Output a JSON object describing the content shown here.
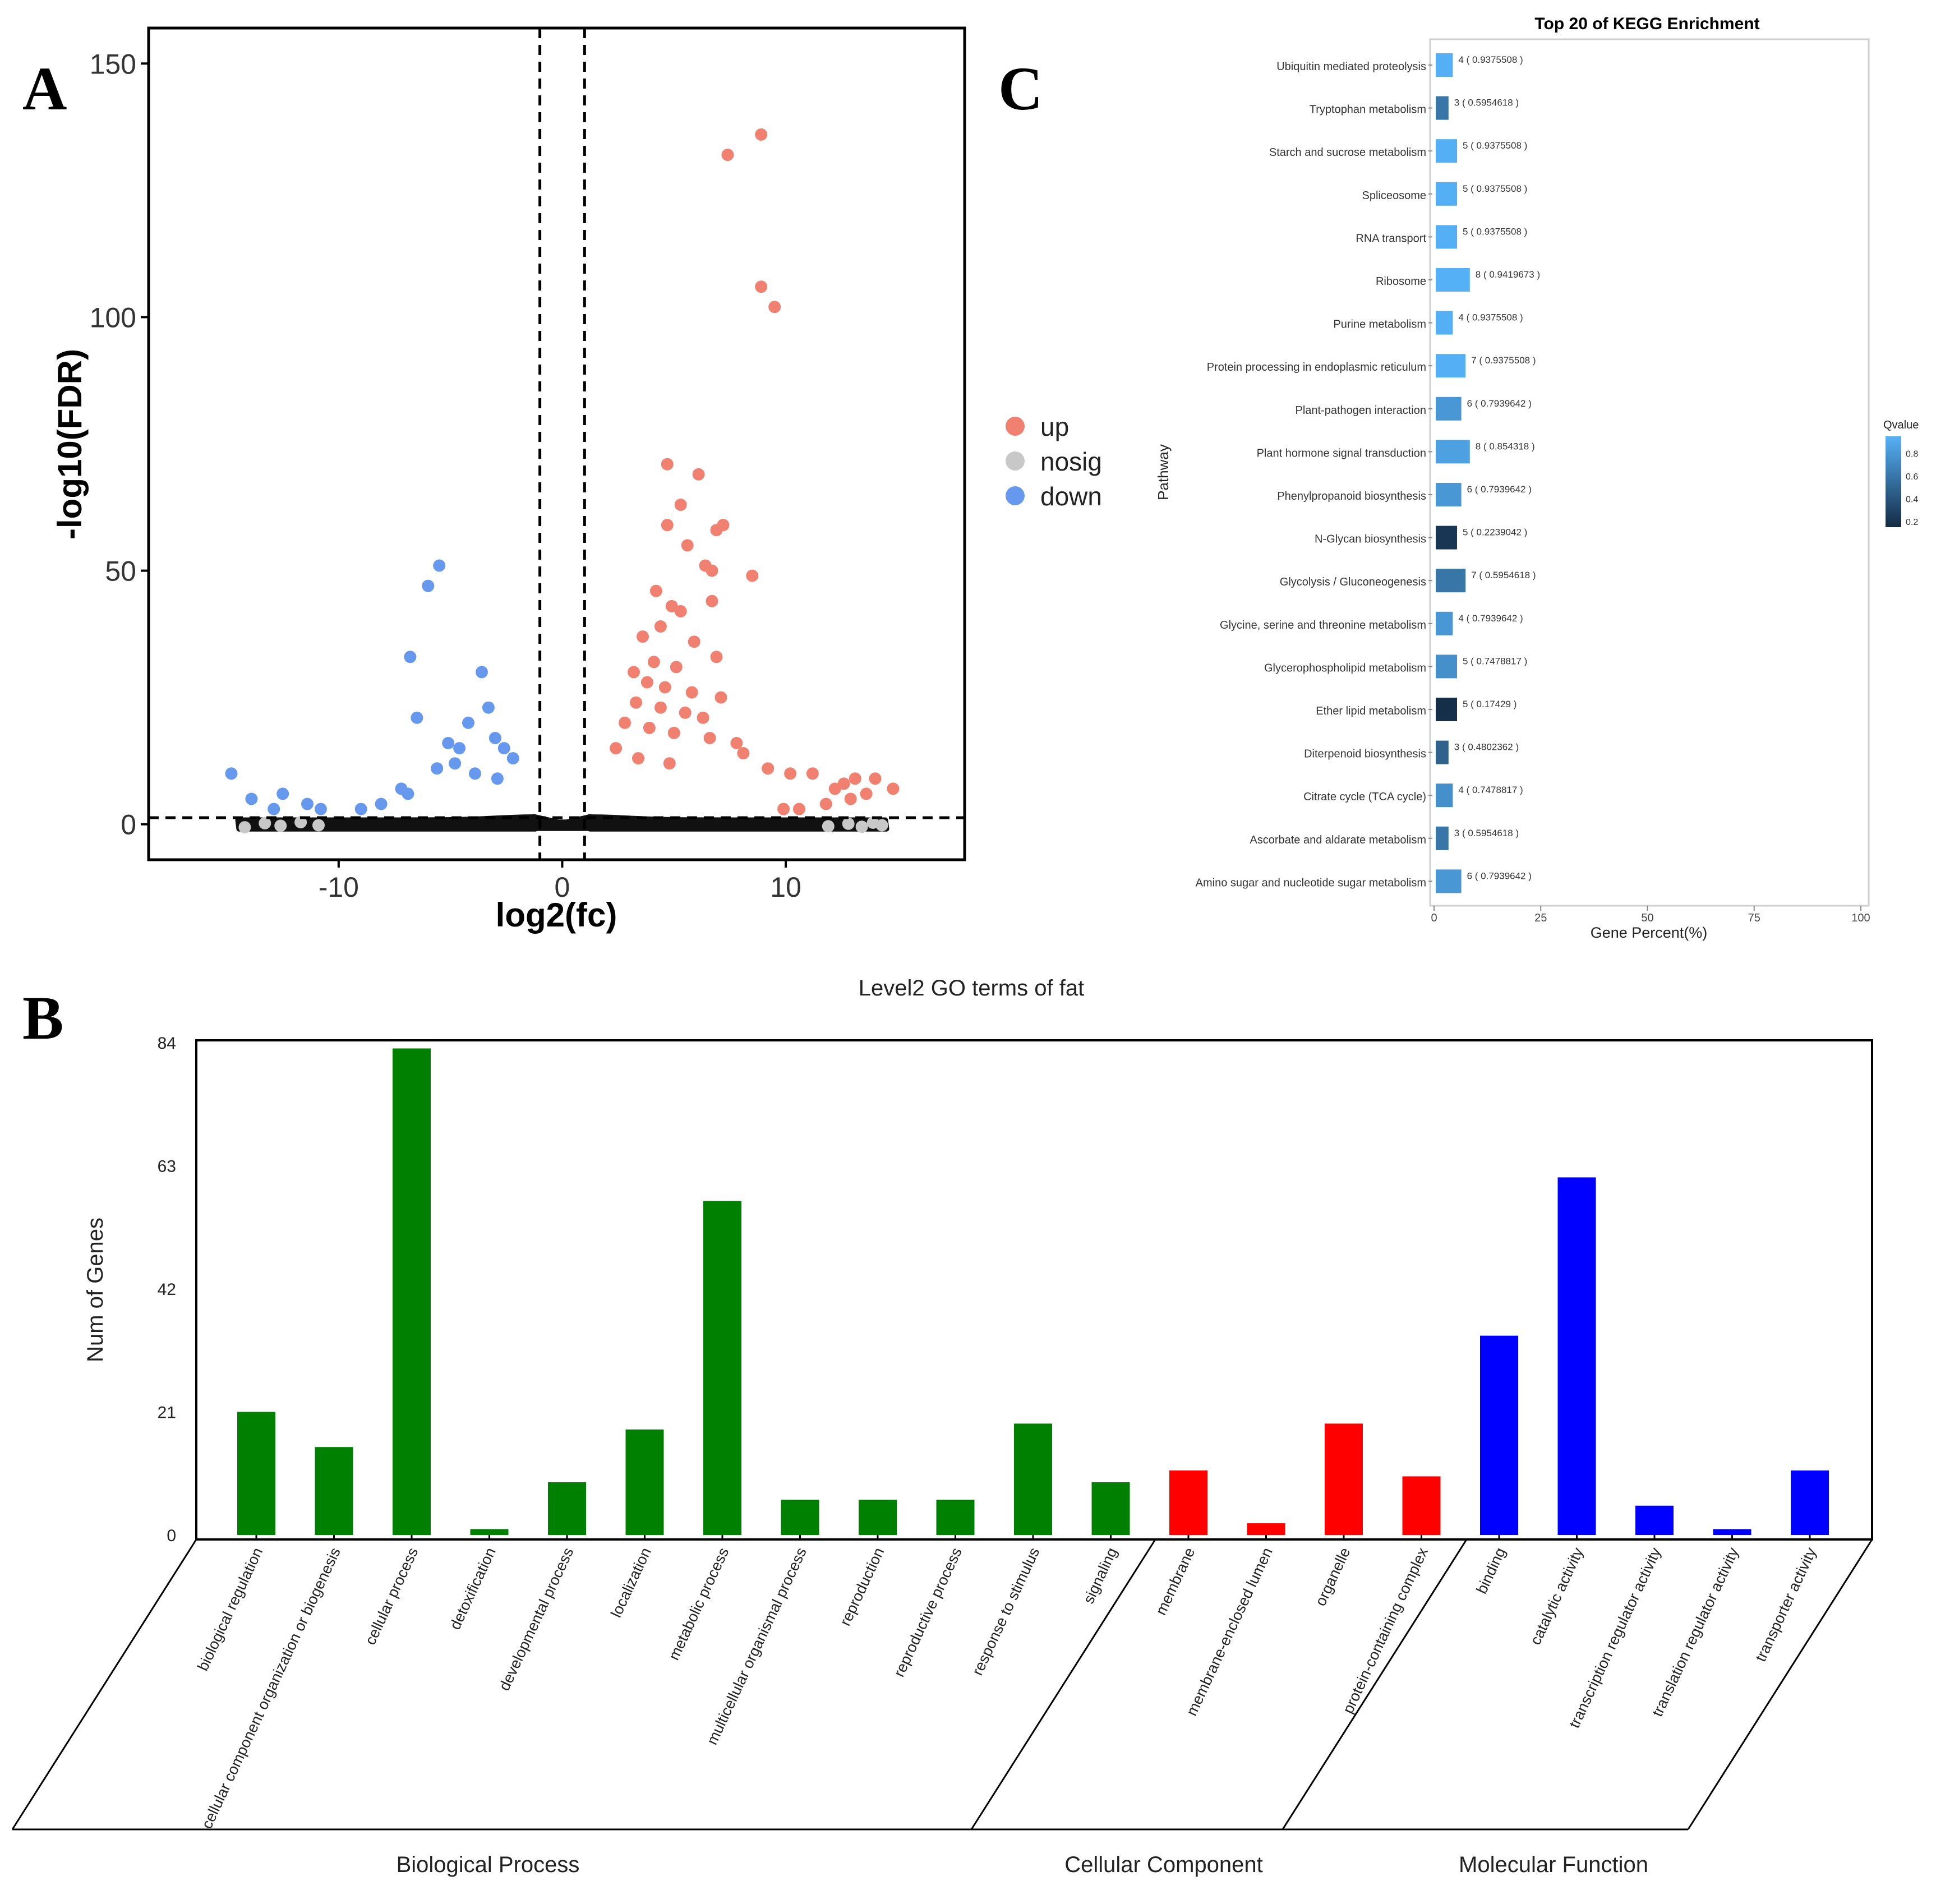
{
  "panel_labels": {
    "a": "A",
    "b": "B",
    "c": "C"
  },
  "chart_data": [
    {
      "id": "volcano",
      "type": "scatter",
      "title": "",
      "xlabel": "log2(fc)",
      "ylabel": "-log10(FDR)",
      "xlim": [
        -18.5,
        18
      ],
      "ylim": [
        -7,
        157
      ],
      "xticks": [
        -10,
        0,
        10
      ],
      "yticks": [
        0,
        50,
        100,
        150
      ],
      "vlines": [
        -1,
        1
      ],
      "hline": 1.3,
      "legend": {
        "position": "right",
        "items": [
          "up",
          "nosig",
          "down"
        ]
      },
      "colors": {
        "up": "#f08070",
        "nosig": "#c8c8c8",
        "down": "#6699ee",
        "dense": "#111111"
      },
      "series": [
        {
          "name": "up",
          "points": [
            [
              8.9,
              136
            ],
            [
              7.4,
              132
            ],
            [
              8.9,
              106
            ],
            [
              9.5,
              102
            ],
            [
              4.7,
              71
            ],
            [
              6.1,
              69
            ],
            [
              5.3,
              63
            ],
            [
              4.7,
              59
            ],
            [
              7.2,
              59
            ],
            [
              6.9,
              58
            ],
            [
              5.6,
              55
            ],
            [
              6.4,
              51
            ],
            [
              6.7,
              50
            ],
            [
              8.5,
              49
            ],
            [
              4.2,
              46
            ],
            [
              6.7,
              44
            ],
            [
              4.9,
              43
            ],
            [
              5.3,
              42
            ],
            [
              4.4,
              39
            ],
            [
              3.6,
              37
            ],
            [
              5.9,
              36
            ],
            [
              6.9,
              33
            ],
            [
              4.1,
              32
            ],
            [
              3.2,
              30
            ],
            [
              5.1,
              31
            ],
            [
              3.8,
              28
            ],
            [
              4.6,
              27
            ],
            [
              5.8,
              26
            ],
            [
              7.1,
              25
            ],
            [
              3.3,
              24
            ],
            [
              4.4,
              23
            ],
            [
              5.5,
              22
            ],
            [
              6.3,
              21
            ],
            [
              2.8,
              20
            ],
            [
              3.9,
              19
            ],
            [
              5.0,
              18
            ],
            [
              6.6,
              17
            ],
            [
              7.8,
              16
            ],
            [
              8.1,
              14
            ],
            [
              2.4,
              15
            ],
            [
              3.4,
              13
            ],
            [
              4.8,
              12
            ],
            [
              9.2,
              11
            ],
            [
              10.2,
              10
            ],
            [
              11.2,
              10
            ],
            [
              12.2,
              7
            ],
            [
              12.6,
              8
            ],
            [
              13.1,
              9
            ],
            [
              14.0,
              9
            ],
            [
              14.8,
              7
            ],
            [
              13.6,
              6
            ],
            [
              12.9,
              5
            ],
            [
              11.8,
              4
            ],
            [
              10.6,
              3
            ],
            [
              9.9,
              3
            ]
          ]
        },
        {
          "name": "down",
          "points": [
            [
              -5.5,
              51
            ],
            [
              -6.0,
              47
            ],
            [
              -6.8,
              33
            ],
            [
              -3.6,
              30
            ],
            [
              -6.5,
              21
            ],
            [
              -4.2,
              20
            ],
            [
              -3.3,
              23
            ],
            [
              -5.1,
              16
            ],
            [
              -4.6,
              15
            ],
            [
              -3.0,
              17
            ],
            [
              -2.6,
              15
            ],
            [
              -4.8,
              12
            ],
            [
              -5.6,
              11
            ],
            [
              -2.2,
              13
            ],
            [
              -7.2,
              7
            ],
            [
              -3.9,
              10
            ],
            [
              -14.8,
              10
            ],
            [
              -13.9,
              5
            ],
            [
              -12.5,
              6
            ],
            [
              -11.4,
              4
            ],
            [
              -10.8,
              3
            ],
            [
              -12.9,
              3
            ],
            [
              -6.9,
              6
            ],
            [
              -8.1,
              4
            ],
            [
              -9.0,
              3
            ],
            [
              -2.9,
              9
            ]
          ]
        },
        {
          "name": "nosig",
          "points": [
            [
              -14.2,
              -0.6
            ],
            [
              -13.3,
              0.2
            ],
            [
              -12.6,
              -0.3
            ],
            [
              -11.7,
              0.4
            ],
            [
              -10.9,
              -0.2
            ],
            [
              13.4,
              -0.5
            ],
            [
              13.9,
              0.3
            ],
            [
              14.3,
              -0.2
            ],
            [
              12.8,
              0.1
            ],
            [
              11.9,
              -0.4
            ]
          ]
        }
      ]
    },
    {
      "id": "kegg",
      "type": "bar",
      "orientation": "horizontal",
      "title": "Top 20 of KEGG Enrichment",
      "xlabel": "Gene Percent(%)",
      "ylabel": "Pathway",
      "xlim": [
        0,
        100
      ],
      "xticks": [
        0,
        25,
        50,
        75,
        100
      ],
      "legend": {
        "position": "right",
        "title": "Qvalue",
        "ticks": [
          0.8,
          0.6,
          0.4,
          0.2
        ]
      },
      "categories": [
        "Ubiquitin mediated proteolysis",
        "Tryptophan metabolism",
        "Starch and sucrose metabolism",
        "Spliceosome",
        "RNA transport",
        "Ribosome",
        "Purine metabolism",
        "Protein processing in endoplasmic reticulum",
        "Plant-pathogen interaction",
        "Plant hormone signal transduction",
        "Phenylpropanoid biosynthesis",
        "N-Glycan biosynthesis",
        "Glycolysis / Gluconeogenesis",
        "Glycine, serine and threonine metabolism",
        "Glycerophospholipid metabolism",
        "Ether lipid metabolism",
        "Diterpenoid biosynthesis",
        "Citrate cycle (TCA cycle)",
        "Ascorbate and aldarate metabolism",
        "Amino sugar and nucleotide sugar metabolism"
      ],
      "counts": [
        4,
        3,
        5,
        5,
        5,
        8,
        4,
        7,
        6,
        8,
        6,
        5,
        7,
        4,
        5,
        5,
        3,
        4,
        3,
        6
      ],
      "qvalues": [
        0.9375508,
        0.5954618,
        0.9375508,
        0.9375508,
        0.9375508,
        0.9419673,
        0.9375508,
        0.9375508,
        0.7939642,
        0.854318,
        0.7939642,
        0.2239042,
        0.5954618,
        0.7939642,
        0.7478817,
        0.17429,
        0.4802362,
        0.7478817,
        0.5954618,
        0.7939642
      ],
      "labels": [
        "4 ( 0.9375508 )",
        "3 ( 0.5954618 )",
        "5 ( 0.9375508 )",
        "5 ( 0.9375508 )",
        "5 ( 0.9375508 )",
        "8 ( 0.9419673 )",
        "4 ( 0.9375508 )",
        "7 ( 0.9375508 )",
        "6 ( 0.7939642 )",
        "8 ( 0.854318 )",
        "6 ( 0.7939642 )",
        "5 ( 0.2239042 )",
        "7 ( 0.5954618 )",
        "4 ( 0.7939642 )",
        "5 ( 0.7478817 )",
        "5 ( 0.17429 )",
        "3 ( 0.4802362 )",
        "4 ( 0.7478817 )",
        "3 ( 0.5954618 )",
        "6 ( 0.7939642 )"
      ],
      "colors": {
        "low": "#132b43",
        "high": "#56b1f7"
      }
    },
    {
      "id": "go",
      "type": "bar",
      "title": "Level2 GO terms of fat",
      "xlabel": "",
      "ylabel": "Num of Genes",
      "ylim": [
        0,
        84
      ],
      "yticks": [
        0,
        21,
        42,
        63,
        84
      ],
      "categories": [
        "biological regulation",
        "cellular component organization or biogenesis",
        "cellular process",
        "detoxification",
        "developmental process",
        "localization",
        "metabolic process",
        "multicellular organismal process",
        "reproduction",
        "reproductive process",
        "response to stimulus",
        "signaling",
        "membrane",
        "membrane-enclosed lumen",
        "organelle",
        "protein-containing complex",
        "binding",
        "catalytic activity",
        "transcription regulator activity",
        "translation regulator activity",
        "transporter activity"
      ],
      "values": [
        21,
        15,
        83,
        1,
        9,
        18,
        57,
        6,
        6,
        6,
        19,
        9,
        11,
        2,
        19,
        10,
        34,
        61,
        5,
        1,
        11
      ],
      "groups": [
        {
          "name": "Biological Process",
          "start": 0,
          "end": 11,
          "color": "#008000"
        },
        {
          "name": "Cellular Component",
          "start": 12,
          "end": 15,
          "color": "#ff0000"
        },
        {
          "name": "Molecular Function",
          "start": 16,
          "end": 20,
          "color": "#0000ff"
        }
      ]
    }
  ]
}
